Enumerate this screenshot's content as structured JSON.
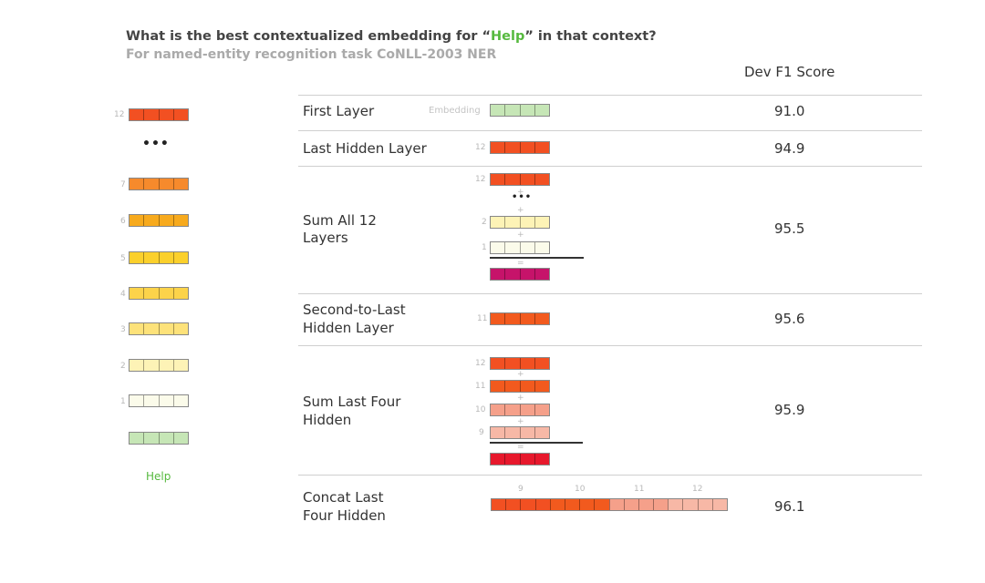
{
  "title": {
    "before": "What is the best contextualized embedding for “",
    "highlight": "Help",
    "after": "” in that context?"
  },
  "subtitle": "For named-entity recognition task CoNLL-2003 NER",
  "score_header": "Dev F1 Score",
  "embedding_label": "Embedding",
  "help_word": "Help",
  "dots": "•••",
  "small_dots": "•••",
  "plus_sign": "+",
  "equals_sign": "=",
  "colors": {
    "l12": "#f25022",
    "l11": "#f25a1e",
    "l10": "#f5a08a",
    "l9": "#f7b8a6",
    "l7": "#f68a2c",
    "l6": "#f7aa1d",
    "l5": "#fbd02c",
    "l4": "#fcd34a",
    "l3": "#fde27a",
    "l2": "#fdf3b6",
    "l1": "#fbfbea",
    "embedding": "#c6e6b6",
    "sum_all": "#c6136a",
    "sum_four": "#e7182c"
  },
  "left_stack": {
    "layers": [
      "12",
      "7",
      "6",
      "5",
      "4",
      "3",
      "2",
      "1"
    ]
  },
  "rows": [
    {
      "label": "First Layer",
      "score": "91.0"
    },
    {
      "label": "Last Hidden Layer",
      "score": "94.9",
      "layer_num": "12"
    },
    {
      "label_line1": "Sum All 12",
      "label_line2": "Layers",
      "score": "95.5",
      "layer_nums": [
        "12",
        "2",
        "1"
      ]
    },
    {
      "label_line1": "Second-to-Last",
      "label_line2": "Hidden Layer",
      "score": "95.6",
      "layer_num": "11"
    },
    {
      "label_line1": "Sum Last Four",
      "label_line2": "Hidden",
      "score": "95.9",
      "layer_nums": [
        "12",
        "11",
        "10",
        "9"
      ]
    },
    {
      "label_line1": "Concat Last",
      "label_line2": "Four Hidden",
      "score": "96.1",
      "layer_nums": [
        "9",
        "10",
        "11",
        "12"
      ]
    }
  ]
}
